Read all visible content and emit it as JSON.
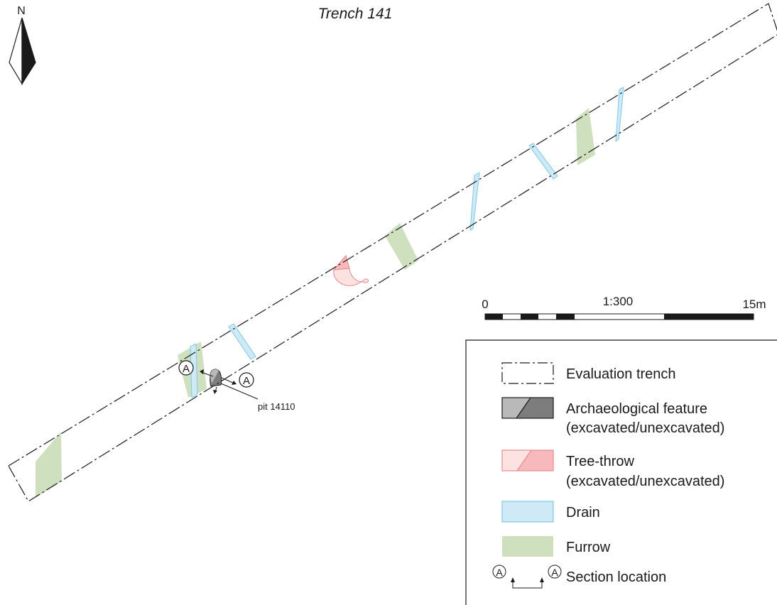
{
  "title": "Trench 141",
  "north_label": "N",
  "scale": {
    "ratio": "1:300",
    "start": "0",
    "end": "15m"
  },
  "feature_label": "pit 14110",
  "section_label": "A",
  "legend": {
    "trench": "Evaluation trench",
    "archaeological_line1": "Archaeological feature",
    "archaeological_line2": "(excavated/unexcavated)",
    "treethrow_line1": "Tree-throw",
    "treethrow_line2": "(excavated/unexcavated)",
    "drain": "Drain",
    "furrow": "Furrow",
    "section": "Section location"
  },
  "colors": {
    "drain": "#cdeaf6",
    "drain_stroke": "#7fc7e6",
    "furrow": "#cfe0bf",
    "treethrow_light": "#fde2e2",
    "treethrow_dark": "#f7b9bb",
    "treethrow_stroke": "#e98a8f",
    "feature_light": "#b9b9b9",
    "feature_dark": "#7d7d7d"
  }
}
